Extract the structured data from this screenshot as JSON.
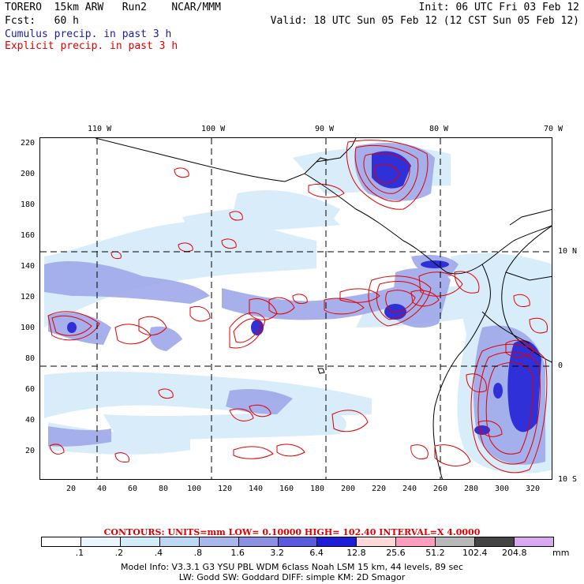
{
  "header": {
    "line1_left": "TORERO  15km ARW   Run2    NCAR/MMM",
    "line1_right": "Init: 06 UTC Fri 03 Feb 12",
    "line2_left": "Fcst:   60 h",
    "line2_right": "Valid: 18 UTC Sun 05 Feb 12 (12 CST Sun 05 Feb 12)",
    "cumulus_label": "Cumulus precip. in past 3 h",
    "explicit_label": "Explicit precip. in past 3 h"
  },
  "colors": {
    "cumulus_text": "#1a1aa8",
    "explicit_text": "#e00000",
    "contour": "#e00000",
    "coast": "#000000"
  },
  "map": {
    "top_labels": [
      "110 W",
      "100 W",
      "90 W",
      "80 W",
      "70 W"
    ],
    "right_labels": [
      "10 N",
      "0",
      "10 S"
    ],
    "left_ticks": [
      "220",
      "200",
      "180",
      "160",
      "140",
      "120",
      "100",
      "80",
      "60",
      "40",
      "20"
    ],
    "bottom_ticks": [
      "20",
      "40",
      "60",
      "80",
      "100",
      "120",
      "140",
      "160",
      "180",
      "200",
      "220",
      "240",
      "260",
      "280",
      "300",
      "320"
    ]
  },
  "contours_text": {
    "label": "CONTOURS:  UNITS=mm  LOW= 0.10000      HIGH=  102.40      INTERVAL=X  4.0000"
  },
  "colorbar": {
    "unit": "mm",
    "labels": [
      ".1",
      ".2",
      ".4",
      ".8",
      "1.6",
      "3.2",
      "6.4",
      "12.8",
      "25.6",
      "51.2",
      "102.4",
      "204.8"
    ],
    "colors": [
      "#ffffff",
      "#e8f6ff",
      "#d2ecfa",
      "#bcd8f4",
      "#a8b8ec",
      "#8c90e2",
      "#5a5ae0",
      "#1e1ed8",
      "#ffd8d8",
      "#ff9cc0",
      "#b8b8b8",
      "#444444",
      "#d8a8f0"
    ]
  },
  "footer": {
    "line1": "Model Info: V3.3.1    G3      YSU PBL   WDM 6class  Noah LSM  15 km,    44 levels,    89 sec",
    "line2": "LW: Godd SW: Goddard DIFF: simple KM: 2D Smagor"
  }
}
